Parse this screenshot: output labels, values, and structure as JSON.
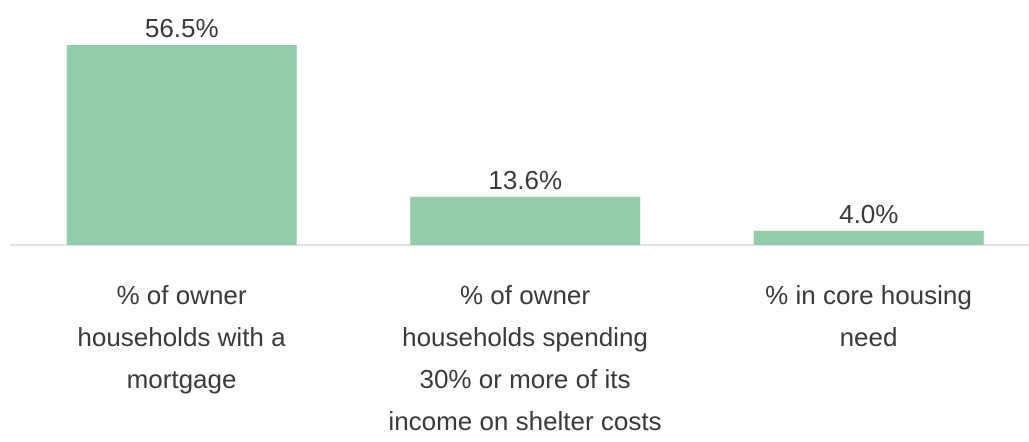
{
  "chart_data": {
    "type": "bar",
    "categories": [
      "% of owner\nhouseholds with a\nmortgage",
      "% of owner\nhouseholds spending\n30% or more of its\nincome on shelter costs",
      "% in core housing\nneed"
    ],
    "values": [
      56.5,
      13.6,
      4.0
    ],
    "value_labels": [
      "56.5%",
      "13.6%",
      "4.0%"
    ],
    "color": "#93cca8"
  }
}
